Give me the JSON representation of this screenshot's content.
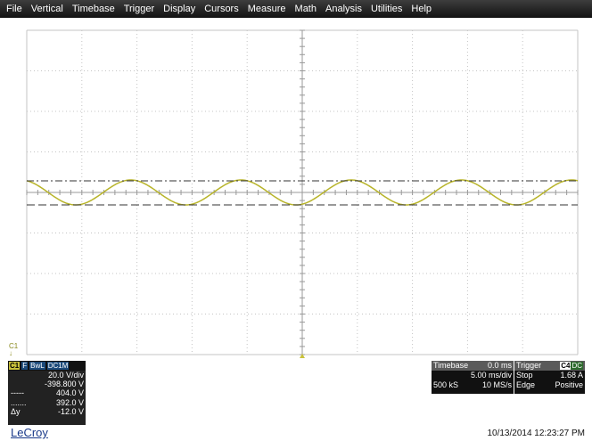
{
  "menu": [
    "File",
    "Vertical",
    "Timebase",
    "Trigger",
    "Display",
    "Cursors",
    "Measure",
    "Math",
    "Analysis",
    "Utilities",
    "Help"
  ],
  "colors": {
    "trace": "#b8b42a",
    "grid": "#9a9a9a",
    "menubar": "#222222"
  },
  "channel": {
    "name_marker": "C1",
    "tags": [
      "C1",
      "F",
      "BwL",
      "DC1M"
    ],
    "scale": "20.0 V/div",
    "offset": "-398.800 V",
    "cursor1": {
      "symbol": "-----",
      "value": "404.0 V"
    },
    "cursor2": {
      "symbol": ".......",
      "value": "392.0 V"
    },
    "delta": {
      "symbol": "Δy",
      "value": "-12.0 V"
    }
  },
  "timebase": {
    "label": "Timebase",
    "delay": "0.0 ms",
    "per_div": "5.00 ms/div",
    "samples": "500 kS",
    "rate": "10 MS/s"
  },
  "trigger": {
    "label": "Trigger",
    "source": "C4",
    "coupling": "DC",
    "mode": "Stop",
    "level": "1.68 A",
    "type": "Edge",
    "slope": "Positive"
  },
  "waveform": {
    "cycles": 5,
    "amplitude_div": 0.5,
    "center_div": -0.5,
    "icons": [
      "trigger-marker-icon"
    ]
  },
  "brand": "LeCroy",
  "datetime": "10/13/2014 12:23:27 PM"
}
